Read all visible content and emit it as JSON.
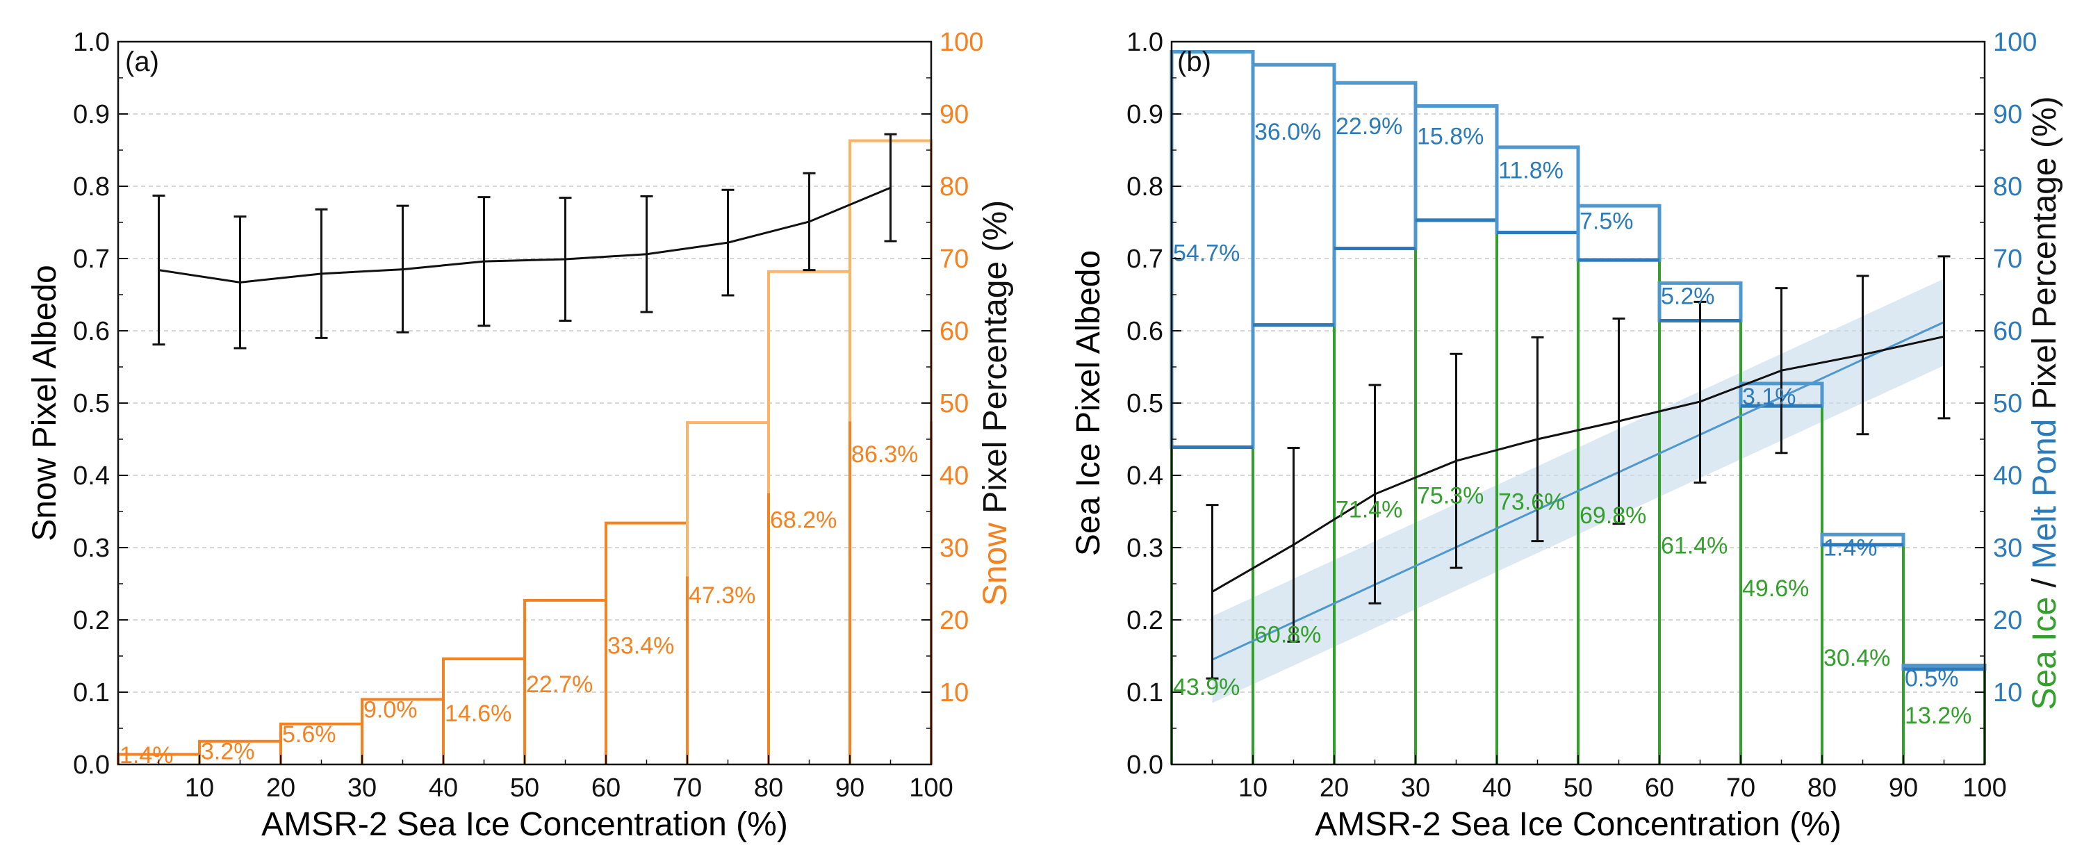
{
  "colors": {
    "axis": "#111111",
    "snow": "#f58220",
    "snow_light": "#fbb366",
    "ice": "#33a02c",
    "pond": "#2b7bba",
    "pond_light": "#4f98cf",
    "band": "#c5d8ea",
    "albedo": "#111111"
  },
  "chart_data": [
    {
      "type": "bar",
      "panel": "(a)",
      "xlabel": "AMSR-2 Sea Ice Concentration (%)",
      "ylabel": "Snow Pixel Albedo",
      "y2label_colored": "Snow",
      "y2label_rest": " Pixel Percentage (%)",
      "xlim": [
        0,
        100
      ],
      "ylim": [
        0,
        1.0
      ],
      "y2lim": [
        0,
        100
      ],
      "x_ticks": [
        "10",
        "20",
        "30",
        "40",
        "50",
        "60",
        "70",
        "80",
        "90",
        "100"
      ],
      "y_ticks": [
        "0.0",
        "0.1",
        "0.2",
        "0.3",
        "0.4",
        "0.5",
        "0.6",
        "0.7",
        "0.8",
        "0.9",
        "1.0"
      ],
      "y2_ticks": [
        "10",
        "20",
        "30",
        "40",
        "50",
        "60",
        "70",
        "80",
        "90",
        "100"
      ],
      "grid": true,
      "bins": [
        [
          0,
          10
        ],
        [
          10,
          20
        ],
        [
          20,
          30
        ],
        [
          30,
          40
        ],
        [
          40,
          50
        ],
        [
          50,
          60
        ],
        [
          60,
          70
        ],
        [
          70,
          80
        ],
        [
          80,
          90
        ],
        [
          90,
          100
        ]
      ],
      "snow_percentage": [
        1.4,
        3.2,
        5.6,
        9.0,
        14.6,
        22.7,
        33.4,
        47.3,
        68.2,
        86.3
      ],
      "snow_labels": [
        "1.4%",
        "3.2%",
        "5.6%",
        "9.0%",
        "14.6%",
        "22.7%",
        "33.4%",
        "47.3%",
        "68.2%",
        "86.3%"
      ],
      "albedo": {
        "x": [
          5,
          15,
          25,
          35,
          45,
          55,
          65,
          75,
          85,
          95
        ],
        "mean": [
          0.684,
          0.667,
          0.679,
          0.685,
          0.696,
          0.699,
          0.706,
          0.722,
          0.751,
          0.798
        ],
        "upper": [
          0.787,
          0.758,
          0.768,
          0.773,
          0.785,
          0.784,
          0.786,
          0.795,
          0.818,
          0.872
        ],
        "lower": [
          0.581,
          0.576,
          0.59,
          0.598,
          0.607,
          0.614,
          0.626,
          0.649,
          0.684,
          0.724
        ]
      }
    },
    {
      "type": "bar",
      "panel": "(b)",
      "xlabel": "AMSR-2 Sea Ice Concentration (%)",
      "ylabel": "Sea Ice Pixel Albedo",
      "y2label_ice": "Sea Ice",
      "y2label_sep": " / ",
      "y2label_pond": "Melt Pond",
      "y2label_rest": " Pixel Percentage (%)",
      "xlim": [
        0,
        100
      ],
      "ylim": [
        0,
        1.0
      ],
      "y2lim": [
        0,
        100
      ],
      "x_ticks": [
        "10",
        "20",
        "30",
        "40",
        "50",
        "60",
        "70",
        "80",
        "90",
        "100"
      ],
      "y_ticks": [
        "0.0",
        "0.1",
        "0.2",
        "0.3",
        "0.4",
        "0.5",
        "0.6",
        "0.7",
        "0.8",
        "0.9",
        "1.0"
      ],
      "y2_ticks": [
        "10",
        "20",
        "30",
        "40",
        "50",
        "60",
        "70",
        "80",
        "90",
        "100"
      ],
      "grid": true,
      "bins": [
        [
          0,
          10
        ],
        [
          10,
          20
        ],
        [
          20,
          30
        ],
        [
          30,
          40
        ],
        [
          40,
          50
        ],
        [
          50,
          60
        ],
        [
          60,
          70
        ],
        [
          70,
          80
        ],
        [
          80,
          90
        ],
        [
          90,
          100
        ]
      ],
      "sea_ice_percentage": [
        43.9,
        60.8,
        71.4,
        75.3,
        73.6,
        69.8,
        61.4,
        49.6,
        30.4,
        13.2
      ],
      "sea_ice_labels": [
        "43.9%",
        "60.8%",
        "71.4%",
        "75.3%",
        "73.6%",
        "69.8%",
        "61.4%",
        "49.6%",
        "30.4%",
        "13.2%"
      ],
      "melt_pond_percentage": [
        54.7,
        36.0,
        22.9,
        15.8,
        11.8,
        7.5,
        5.2,
        3.1,
        1.4,
        0.5
      ],
      "melt_pond_labels": [
        "54.7%",
        "36.0%",
        "22.9%",
        "15.8%",
        "11.8%",
        "7.5%",
        "5.2%",
        "3.1%",
        "1.4%",
        "0.5%"
      ],
      "albedo": {
        "x": [
          5,
          15,
          25,
          35,
          45,
          55,
          65,
          75,
          85,
          95
        ],
        "mean": [
          0.239,
          0.304,
          0.374,
          0.42,
          0.45,
          0.475,
          0.502,
          0.545,
          0.567,
          0.592
        ],
        "upper": [
          0.359,
          0.438,
          0.525,
          0.568,
          0.591,
          0.617,
          0.64,
          0.659,
          0.676,
          0.703
        ],
        "lower": [
          0.119,
          0.17,
          0.223,
          0.272,
          0.309,
          0.333,
          0.39,
          0.431,
          0.457,
          0.479
        ]
      },
      "fit_line": {
        "x": [
          5,
          95
        ],
        "y": [
          0.145,
          0.612
        ],
        "band_upper": [
          0.205,
          0.672
        ],
        "band_lower": [
          0.085,
          0.552
        ]
      }
    }
  ]
}
